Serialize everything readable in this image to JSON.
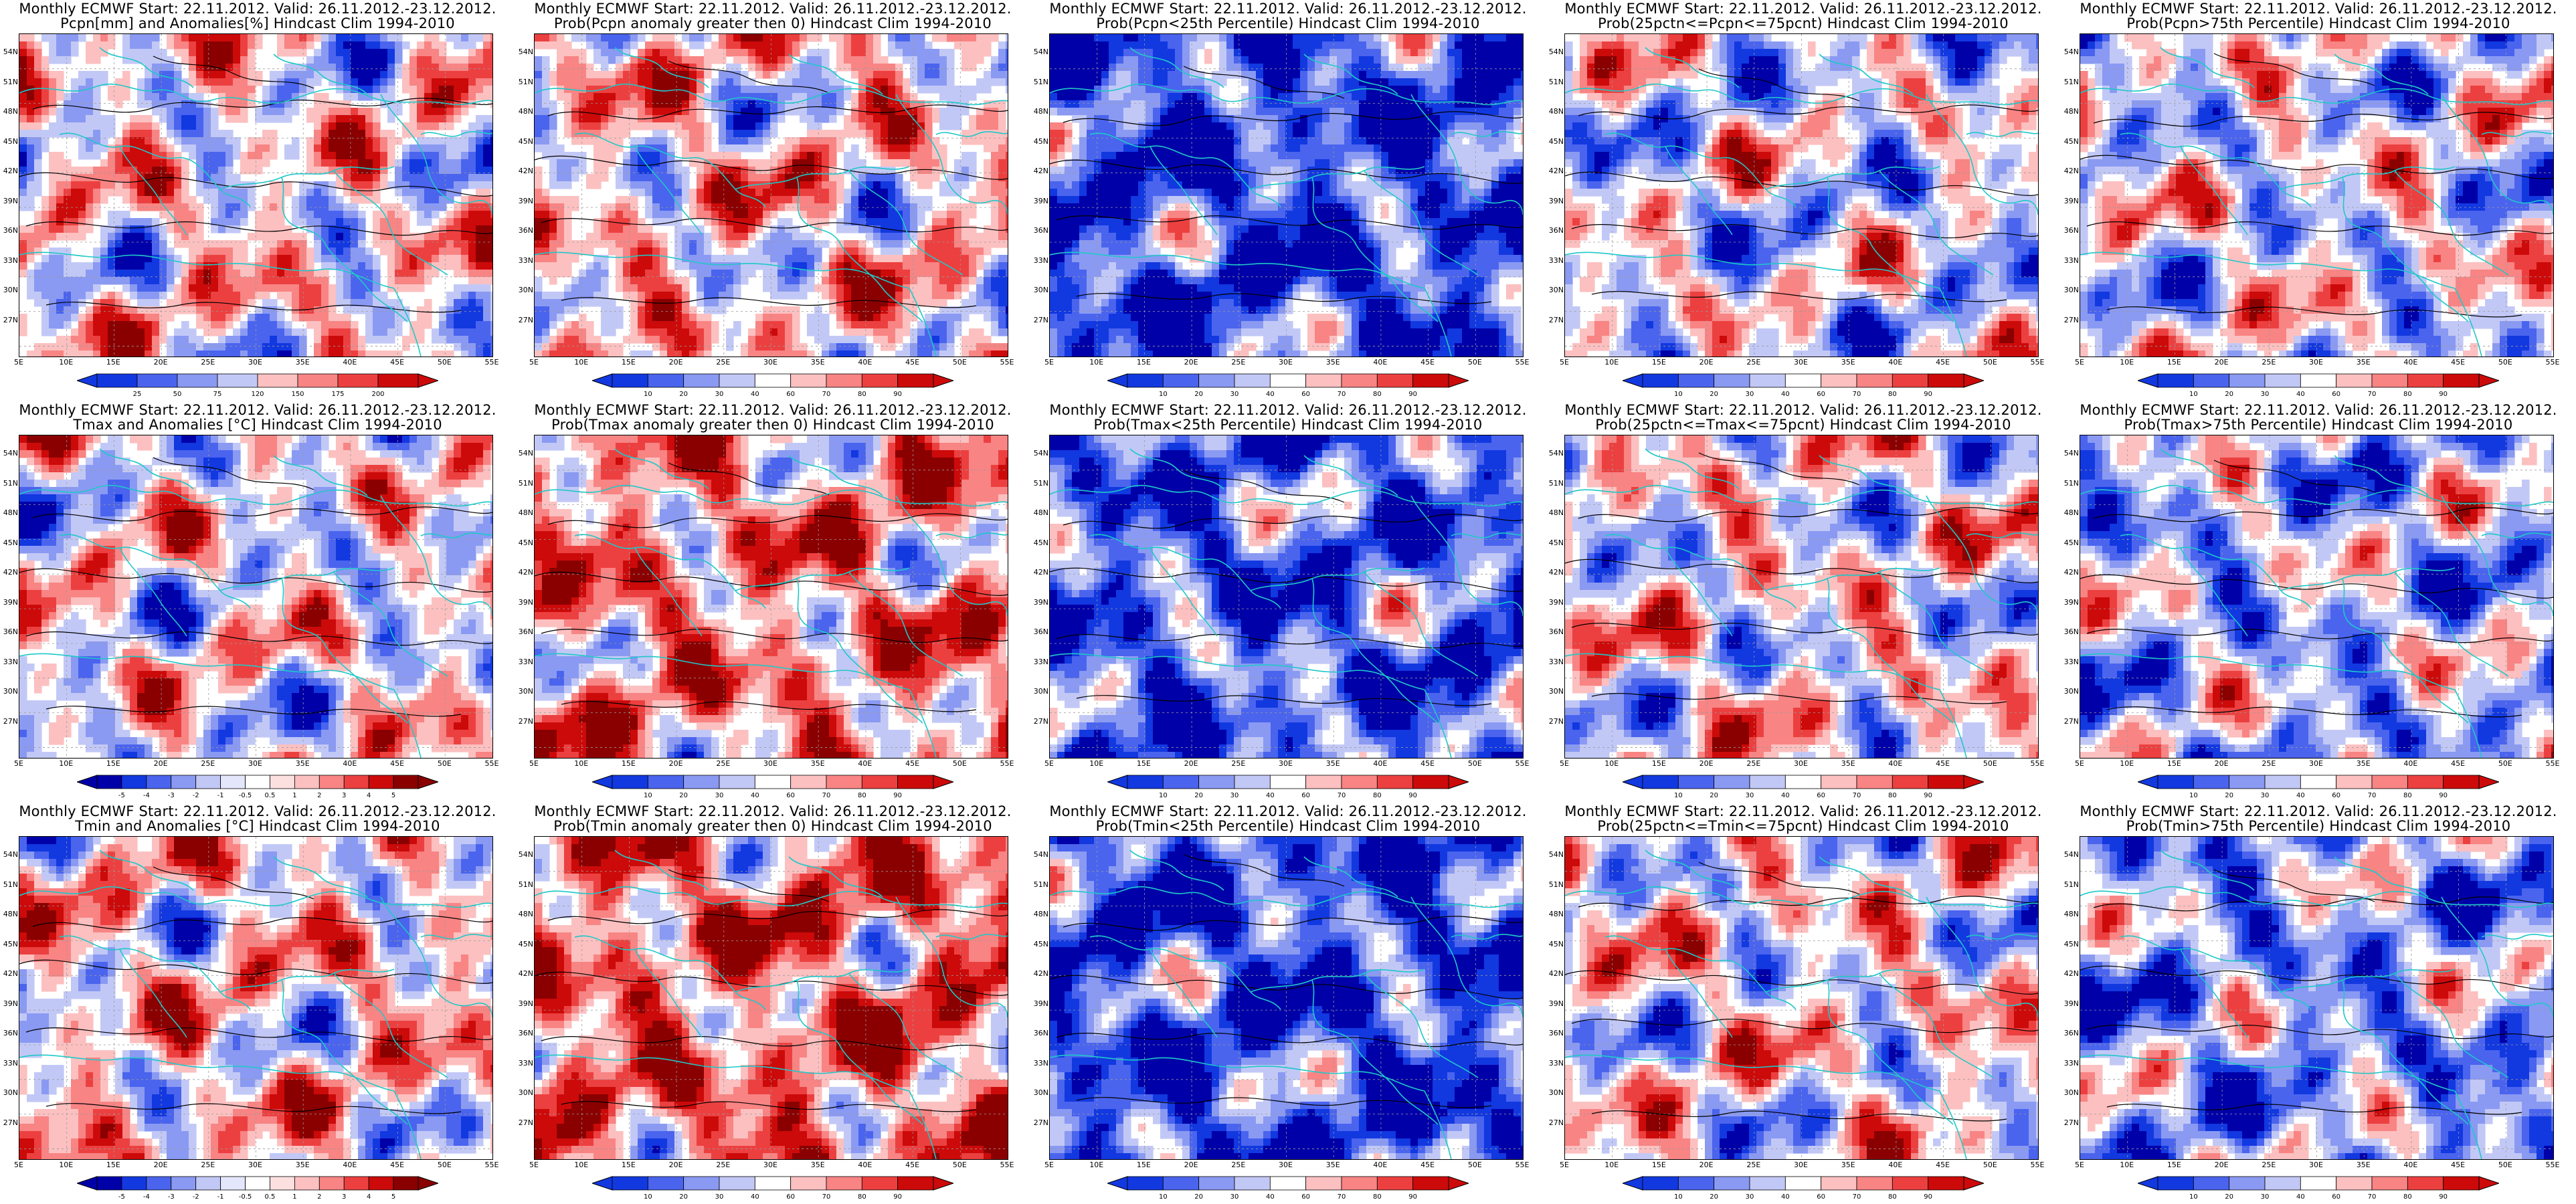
{
  "title_line1": "Monthly ECMWF Start: 22.11.2012. Valid: 26.11.2012.-23.12.2012.",
  "lat_labels": [
    "54N",
    "51N",
    "48N",
    "45N",
    "42N",
    "39N",
    "36N",
    "33N",
    "30N",
    "27N"
  ],
  "lon_labels": [
    "5E",
    "10E",
    "15E",
    "20E",
    "25E",
    "30E",
    "35E",
    "40E",
    "45E",
    "50E",
    "55E"
  ],
  "colorbar_anomaly_precip": [
    "25",
    "50",
    "75",
    "120",
    "150",
    "175",
    "200"
  ],
  "colorbar_anomaly_temp": [
    "-5",
    "-4",
    "-3",
    "-2",
    "-1",
    "-0.5",
    "0.5",
    "1",
    "2",
    "3",
    "4",
    "5"
  ],
  "colorbar_prob": [
    "10",
    "20",
    "30",
    "40",
    "60",
    "70",
    "80",
    "90"
  ],
  "colors": {
    "coast": "#1fc8c8",
    "contour": "#000000",
    "scale": [
      "#0000a8",
      "#1238e0",
      "#4a64ee",
      "#8a9af2",
      "#c2c8f6",
      "#ffffff",
      "#fcc0c0",
      "#f88484",
      "#ec4040",
      "#cc0a0a",
      "#8a0000"
    ]
  },
  "rows": [
    {
      "panels": [
        {
          "line2": "Pcpn[mm] and Anomalies[%] Hindcast Clim 1994-2010",
          "variant": "anomaly_precip",
          "bias": 0.05,
          "seed": 3
        },
        {
          "line2": "Prob(Pcpn anomaly greater then 0) Hindcast Clim 1994-2010",
          "variant": "prob",
          "bias": 0.12,
          "seed": 7
        },
        {
          "line2": "Prob(Pcpn<25th Percentile) Hindcast Clim 1994-2010",
          "variant": "prob",
          "bias": -0.72,
          "seed": 11
        },
        {
          "line2": "Prob(25pctn<=Pcpn<=75pcnt) Hindcast Clim 1994-2010",
          "variant": "prob",
          "bias": -0.12,
          "seed": 13
        },
        {
          "line2": "Prob(Pcpn>75th Percentile) Hindcast Clim 1994-2010",
          "variant": "prob",
          "bias": -0.08,
          "seed": 17
        }
      ]
    },
    {
      "panels": [
        {
          "line2": "Tmax and Anomalies [°C] Hindcast Clim 1994-2010",
          "variant": "anomaly_temp",
          "bias": 0.0,
          "seed": 19
        },
        {
          "line2": "Prob(Tmax anomaly greater then 0) Hindcast Clim 1994-2010",
          "variant": "prob",
          "bias": 0.35,
          "seed": 23
        },
        {
          "line2": "Prob(Tmax<25th Percentile) Hindcast Clim 1994-2010",
          "variant": "prob",
          "bias": -0.6,
          "seed": 29
        },
        {
          "line2": "Prob(25pctn<=Tmax<=75pcnt) Hindcast Clim 1994-2010",
          "variant": "prob",
          "bias": 0.0,
          "seed": 31
        },
        {
          "line2": "Prob(Tmax>75th Percentile) Hindcast Clim 1994-2010",
          "variant": "prob",
          "bias": -0.25,
          "seed": 37
        }
      ]
    },
    {
      "panels": [
        {
          "line2": "Tmin and Anomalies [°C] Hindcast Clim 1994-2010",
          "variant": "anomaly_temp",
          "bias": 0.12,
          "seed": 41
        },
        {
          "line2": "Prob(Tmin anomaly greater then 0) Hindcast Clim 1994-2010",
          "variant": "prob",
          "bias": 0.45,
          "seed": 43
        },
        {
          "line2": "Prob(Tmin<25th Percentile) Hindcast Clim 1994-2010",
          "variant": "prob",
          "bias": -0.7,
          "seed": 47
        },
        {
          "line2": "Prob(25pctn<=Tmin<=75pcnt) Hindcast Clim 1994-2010",
          "variant": "prob",
          "bias": 0.02,
          "seed": 53
        },
        {
          "line2": "Prob(Tmin>75th Percentile) Hindcast Clim 1994-2010",
          "variant": "prob",
          "bias": -0.35,
          "seed": 59
        }
      ]
    }
  ]
}
